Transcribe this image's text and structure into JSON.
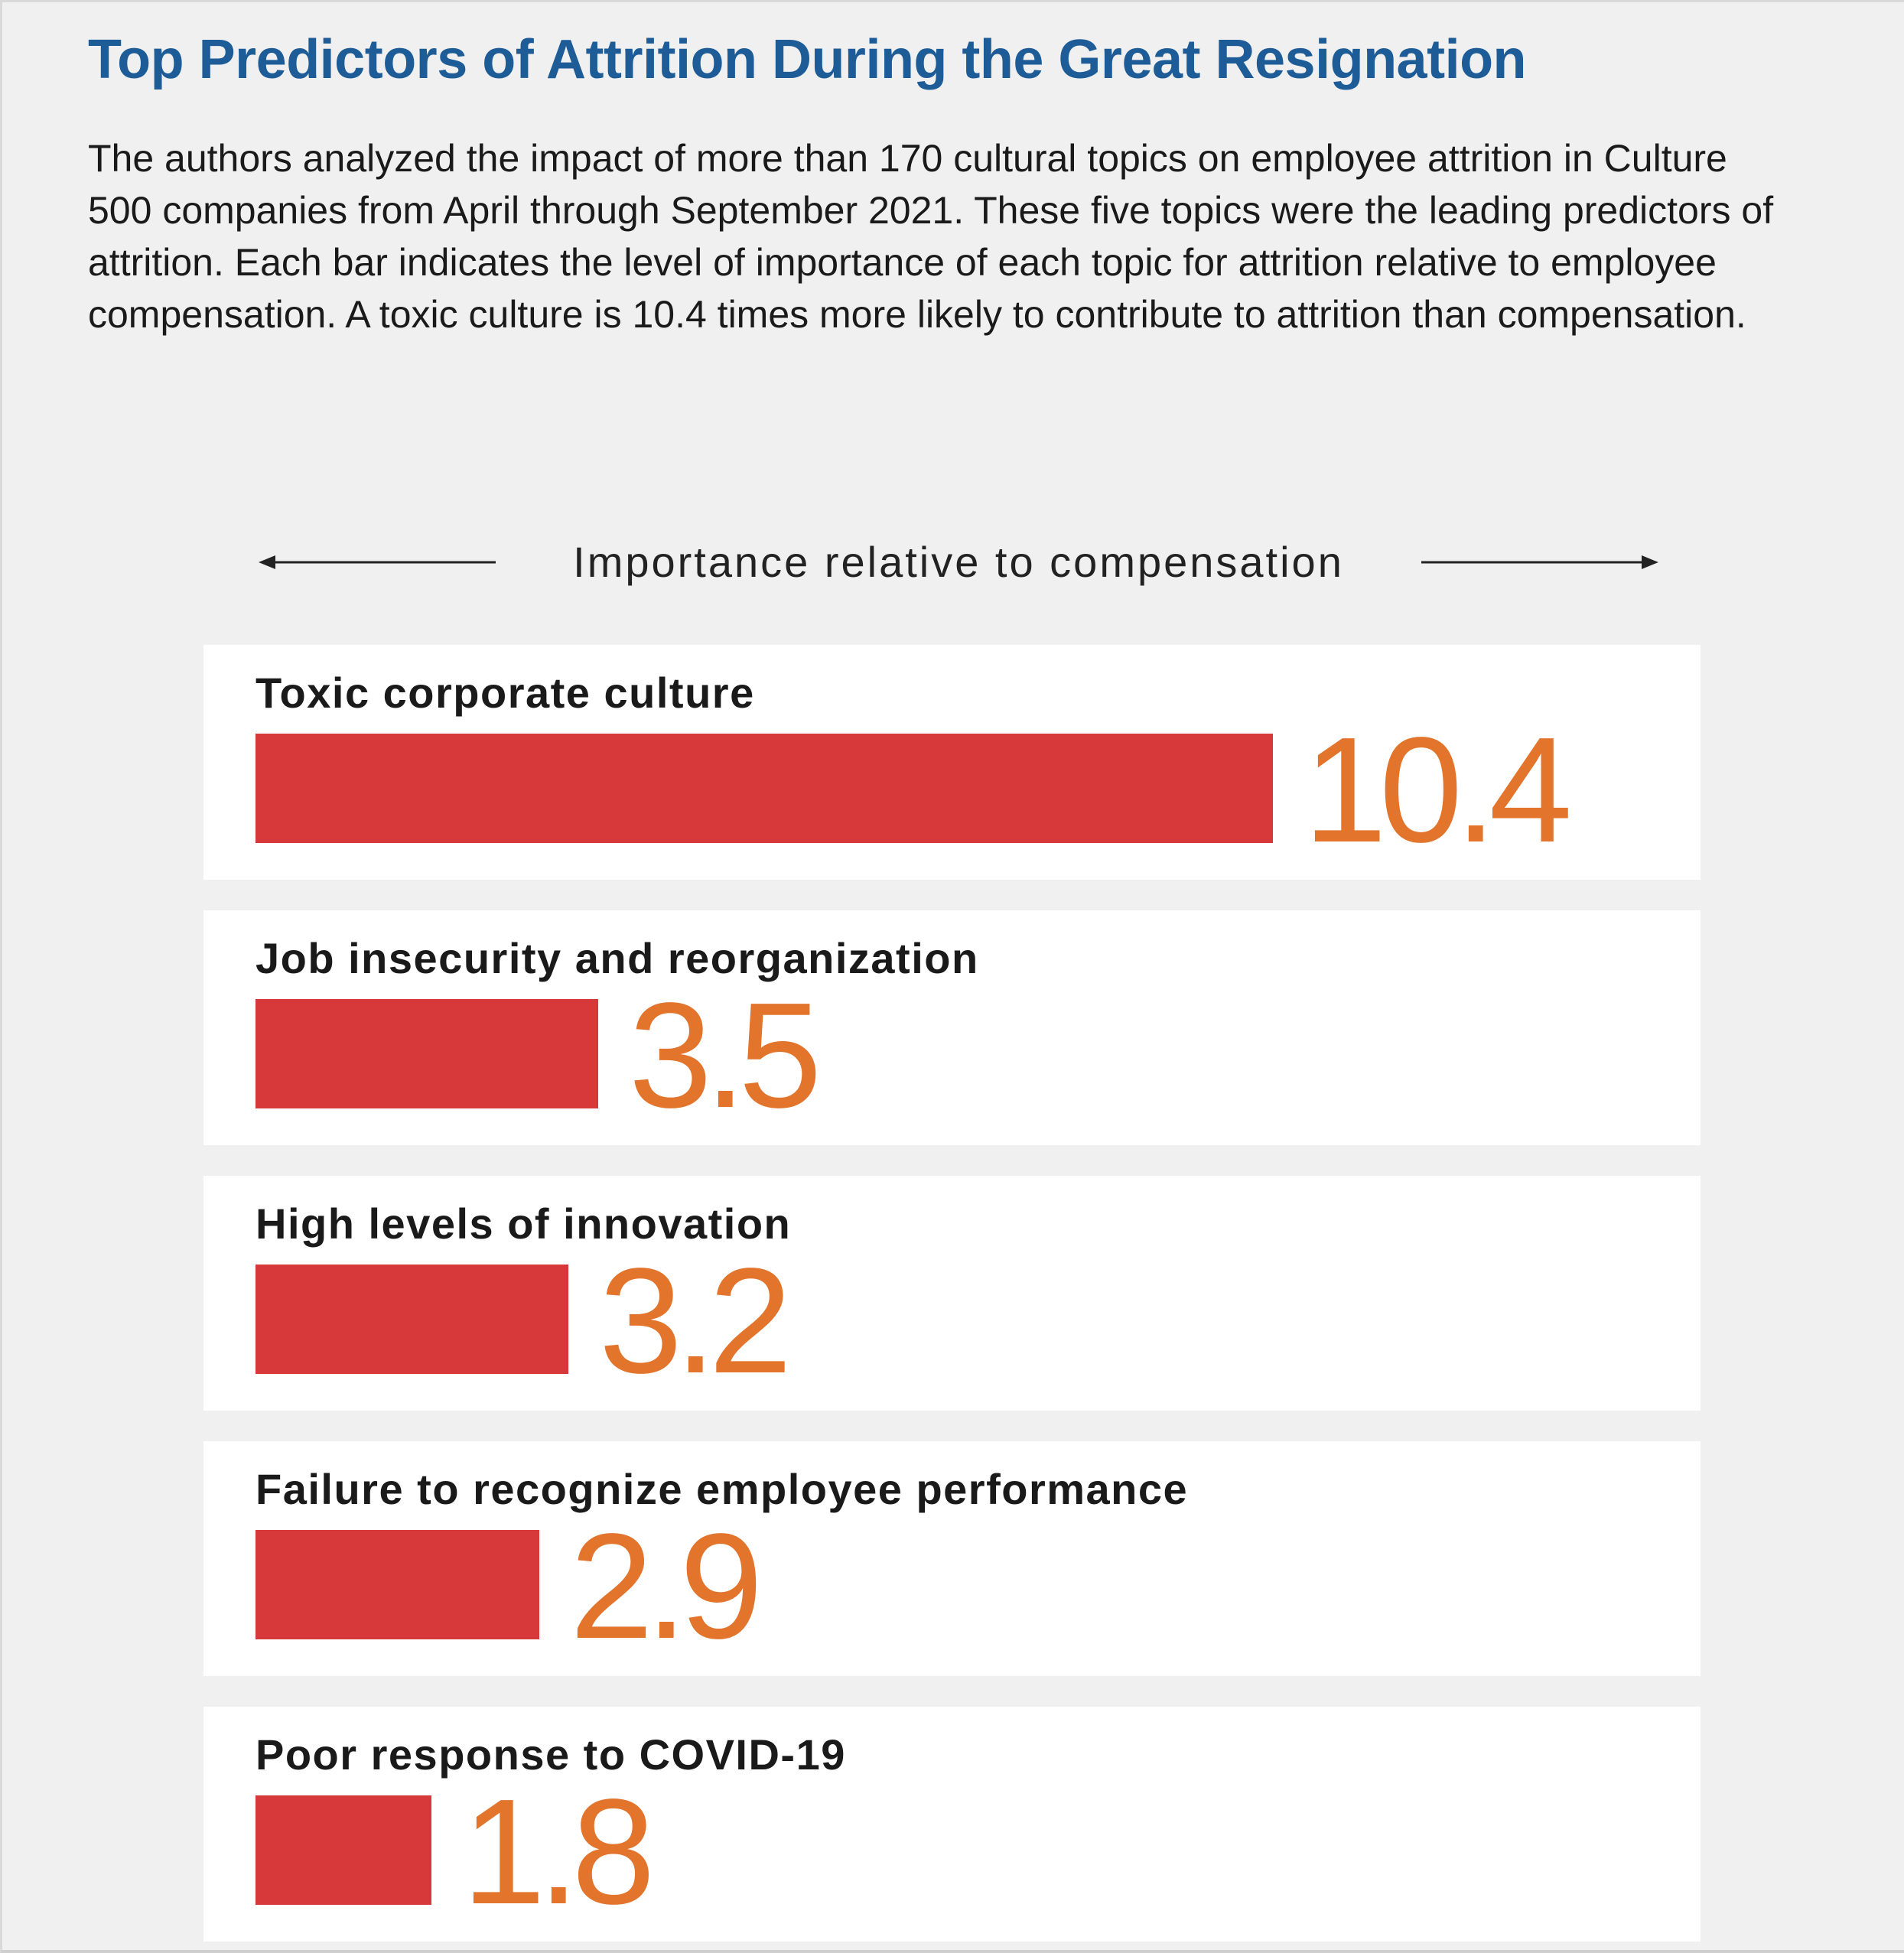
{
  "chart_data": {
    "type": "bar",
    "orientation": "horizontal",
    "title": "Top Predictors of Attrition During the Great Resignation",
    "subtitle": "The authors analyzed the impact of more than 170 cultural topics on employee attrition in Culture 500 companies from April through September 2021. These five topics were the leading predictors of attrition. Each bar indicates the level of importance of each topic for attrition relative to employee compensation. A toxic culture is 10.4 times more likely to contribute to attrition than compensation.",
    "xlabel": "Importance relative to compensation",
    "categories": [
      "Toxic corporate culture",
      "Job insecurity and reorganization",
      "High levels of innovation",
      "Failure to recognize employee performance",
      "Poor response to COVID-19"
    ],
    "values": [
      10.4,
      3.5,
      3.2,
      2.9,
      1.8
    ],
    "value_labels": [
      "10.4",
      "3.5",
      "3.2",
      "2.9",
      "1.8"
    ],
    "xlim": [
      0,
      10.4
    ],
    "grid": false,
    "legend": "none",
    "colors": {
      "title": "#1d5c97",
      "bar": "#d7393a",
      "value": "#e2742c",
      "panel": "#ffffff",
      "background": "#f0f0f0"
    }
  }
}
